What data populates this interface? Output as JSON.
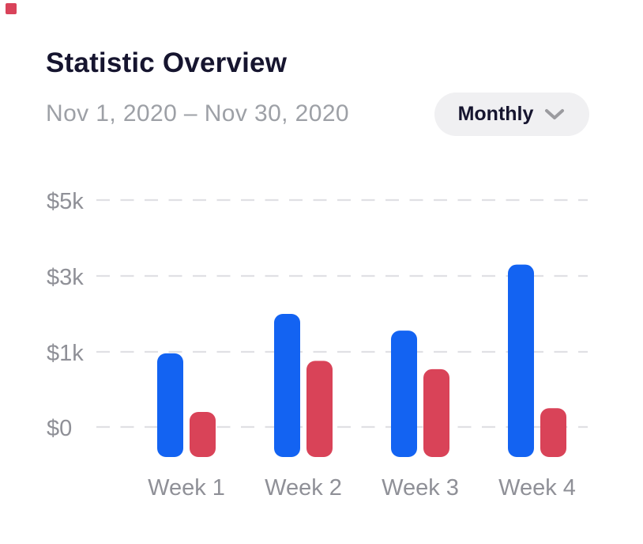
{
  "accent_marker": {
    "color": "#d9435a"
  },
  "header": {
    "title": "Statistic Overview",
    "date_range": "Nov 1, 2020 – Nov 30, 2020",
    "period_selector": {
      "label": "Monthly",
      "icon": "chevron-down-icon"
    }
  },
  "chart_data": {
    "type": "bar",
    "title": "Statistic Overview",
    "categories": [
      "Week 1",
      "Week 2",
      "Week 3",
      "Week 4"
    ],
    "series": [
      {
        "name": "series-blue",
        "color": "#1363f2",
        "values": [
          980,
          2000,
          1560,
          3300
        ]
      },
      {
        "name": "series-red",
        "color": "#d94358",
        "values": [
          200,
          880,
          770,
          250
        ]
      }
    ],
    "y_ticks": [
      {
        "label": "$0",
        "value": 0
      },
      {
        "label": "$1k",
        "value": 1000
      },
      {
        "label": "$3k",
        "value": 3000
      },
      {
        "label": "$5k",
        "value": 5000
      }
    ],
    "ylim": [
      0,
      5000
    ],
    "grid": "horizontal-dashed",
    "legend": "none",
    "axis_label_color": "#8f9097",
    "grid_color": "#e0e0e4"
  }
}
